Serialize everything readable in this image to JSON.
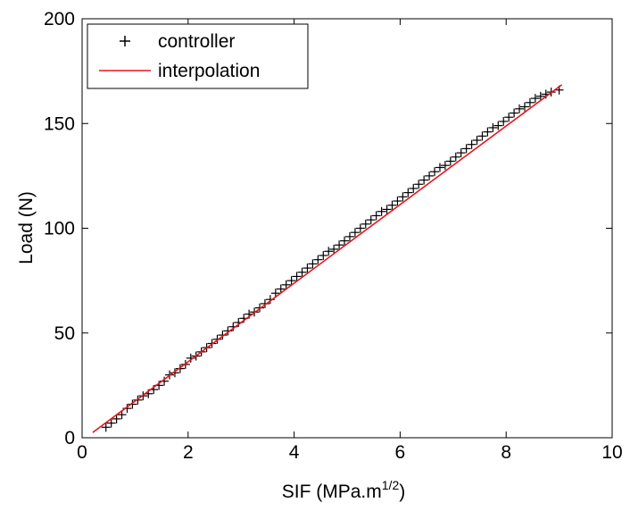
{
  "chart_data": {
    "type": "scatter",
    "xlabel": "SIF (MPa.m",
    "xlabel_sup": "1/2",
    "xlabel_close": ")",
    "ylabel": "Load (N)",
    "xlim": [
      0,
      10
    ],
    "ylim": [
      0,
      200
    ],
    "xticks": [
      0,
      2,
      4,
      6,
      8,
      10
    ],
    "yticks": [
      0,
      50,
      100,
      150,
      200
    ],
    "xtick_labels": [
      "0",
      "2",
      "4",
      "6",
      "8",
      "10"
    ],
    "ytick_labels": [
      "0",
      "50",
      "100",
      "150",
      "200"
    ],
    "grid": false,
    "legend": {
      "position": "top-left",
      "entries": [
        {
          "label": "controller",
          "marker": "+",
          "color": "#000000"
        },
        {
          "label": "interpolation",
          "marker": "line",
          "color": "#e8141e"
        }
      ]
    },
    "series": [
      {
        "name": "controller",
        "kind": "scatter",
        "marker": "+",
        "color": "#000000",
        "x": [
          0.45,
          0.55,
          0.65,
          0.75,
          0.85,
          0.95,
          1.05,
          1.15,
          1.25,
          1.35,
          1.45,
          1.55,
          1.65,
          1.75,
          1.85,
          1.95,
          2.05,
          2.15,
          2.25,
          2.35,
          2.45,
          2.55,
          2.65,
          2.75,
          2.85,
          2.95,
          3.05,
          3.15,
          3.25,
          3.35,
          3.45,
          3.55,
          3.65,
          3.75,
          3.85,
          3.95,
          4.05,
          4.15,
          4.25,
          4.35,
          4.45,
          4.55,
          4.65,
          4.75,
          4.85,
          4.95,
          5.05,
          5.15,
          5.25,
          5.35,
          5.45,
          5.55,
          5.65,
          5.75,
          5.85,
          5.95,
          6.05,
          6.15,
          6.25,
          6.35,
          6.45,
          6.55,
          6.65,
          6.75,
          6.85,
          6.95,
          7.05,
          7.15,
          7.25,
          7.35,
          7.45,
          7.55,
          7.65,
          7.75,
          7.85,
          7.95,
          8.05,
          8.15,
          8.25,
          8.35,
          8.45,
          8.55,
          8.65,
          8.75,
          8.85,
          9.0
        ],
        "y": [
          5,
          7,
          9,
          11,
          14,
          16,
          18,
          20,
          21,
          23,
          25,
          27,
          30,
          31,
          33,
          35,
          38,
          39,
          41,
          43,
          45,
          47,
          49,
          51,
          53,
          55,
          57,
          59,
          60,
          62,
          64,
          66,
          69,
          71,
          73,
          75,
          77,
          79,
          81,
          83,
          85,
          87,
          89,
          90,
          92,
          94,
          96,
          98,
          100,
          102,
          104,
          106,
          108,
          109,
          111,
          113,
          115,
          117,
          119,
          121,
          123,
          125,
          127,
          129,
          130,
          132,
          134,
          136,
          138,
          140,
          142,
          144,
          146,
          148,
          149,
          151,
          153,
          155,
          157,
          158,
          160,
          162,
          163,
          164,
          165,
          166
        ]
      },
      {
        "name": "interpolation",
        "kind": "line",
        "color": "#e8141e",
        "x": [
          0.2,
          9.05
        ],
        "y": [
          2.5,
          168.5
        ]
      }
    ]
  }
}
